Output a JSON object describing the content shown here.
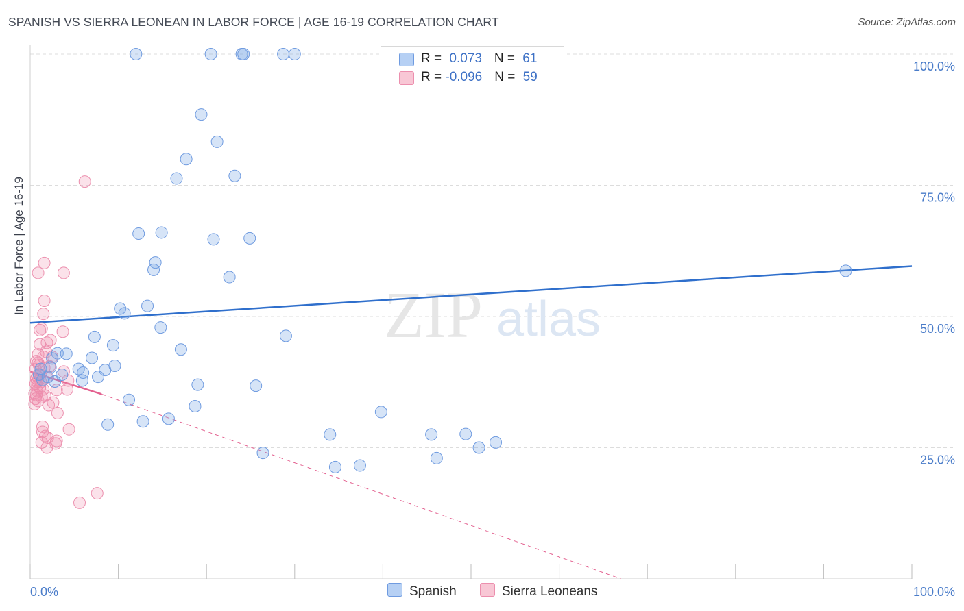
{
  "title": "SPANISH VS SIERRA LEONEAN IN LABOR FORCE | AGE 16-19 CORRELATION CHART",
  "source": "Source: ZipAtlas.com",
  "colors": {
    "spanish_fill": "rgba(120,165,230,0.30)",
    "spanish_stroke": "#6f9be0",
    "spanish_line": "#2f6fcc",
    "sierra_fill": "rgba(240,140,170,0.25)",
    "sierra_stroke": "#ec8fae",
    "sierra_line": "#e3608f",
    "tick": "#4a7cc9",
    "grid": "#dcdcdc"
  },
  "legend": {
    "rows": [
      {
        "r_label": "R = ",
        "r_value": "0.073",
        "n_label": "N = ",
        "n_value": "61"
      },
      {
        "r_label": "R = ",
        "r_value": "-0.096",
        "n_label": "N = ",
        "n_value": "59"
      }
    ]
  },
  "bottom_legend": {
    "spanish": "Spanish",
    "sierra": "Sierra Leoneans"
  },
  "watermark": {
    "zip": "ZIP",
    "atlas": "atlas"
  },
  "chart_data": {
    "type": "scatter",
    "title": "SPANISH VS SIERRA LEONEAN IN LABOR FORCE | AGE 16-19 CORRELATION CHART",
    "xlabel": "",
    "ylabel": "In Labor Force | Age 16-19",
    "xlim": [
      0,
      100
    ],
    "ylim": [
      0,
      100
    ],
    "x_tick_labels": [
      "0.0%",
      "100.0%"
    ],
    "y_tick_labels": [
      "100.0%",
      "75.0%",
      "50.0%",
      "25.0%"
    ],
    "y_tick_values": [
      100,
      75,
      50,
      25
    ],
    "series": [
      {
        "name": "Spanish",
        "R": 0.073,
        "N": 61,
        "trend": {
          "x": [
            0,
            100
          ],
          "y": [
            48.8,
            59.6
          ]
        },
        "points": [
          [
            12.0,
            100.0
          ],
          [
            20.5,
            100.0
          ],
          [
            24.0,
            100.0
          ],
          [
            24.2,
            100.0
          ],
          [
            28.7,
            100.0
          ],
          [
            30.0,
            100.0
          ],
          [
            19.4,
            88.5
          ],
          [
            21.2,
            83.3
          ],
          [
            17.7,
            80.0
          ],
          [
            16.6,
            76.3
          ],
          [
            23.2,
            76.8
          ],
          [
            12.3,
            65.8
          ],
          [
            14.9,
            66.0
          ],
          [
            20.8,
            64.7
          ],
          [
            24.9,
            64.9
          ],
          [
            14.2,
            60.3
          ],
          [
            14.0,
            58.9
          ],
          [
            22.6,
            57.5
          ],
          [
            92.5,
            58.7
          ],
          [
            10.2,
            51.5
          ],
          [
            10.7,
            50.6
          ],
          [
            13.3,
            52.0
          ],
          [
            14.8,
            47.9
          ],
          [
            29.0,
            46.3
          ],
          [
            7.3,
            46.1
          ],
          [
            9.4,
            44.5
          ],
          [
            17.1,
            43.7
          ],
          [
            1.0,
            38.9
          ],
          [
            1.4,
            37.9
          ],
          [
            2.3,
            40.3
          ],
          [
            2.5,
            42.0
          ],
          [
            3.1,
            43.0
          ],
          [
            4.1,
            42.9
          ],
          [
            2.8,
            37.6
          ],
          [
            3.6,
            38.9
          ],
          [
            5.5,
            40.0
          ],
          [
            6.0,
            39.3
          ],
          [
            7.0,
            42.1
          ],
          [
            7.7,
            38.5
          ],
          [
            8.5,
            39.8
          ],
          [
            9.6,
            40.6
          ],
          [
            5.9,
            37.8
          ],
          [
            19.0,
            37.0
          ],
          [
            25.6,
            36.8
          ],
          [
            11.2,
            34.1
          ],
          [
            18.7,
            32.9
          ],
          [
            39.8,
            31.8
          ],
          [
            8.8,
            29.4
          ],
          [
            12.8,
            30.0
          ],
          [
            15.7,
            30.5
          ],
          [
            34.0,
            27.5
          ],
          [
            45.5,
            27.5
          ],
          [
            49.4,
            27.6
          ],
          [
            50.9,
            25.0
          ],
          [
            52.8,
            26.0
          ],
          [
            26.4,
            24.0
          ],
          [
            34.6,
            21.3
          ],
          [
            37.4,
            21.6
          ],
          [
            46.1,
            23.0
          ],
          [
            1.2,
            40.0
          ],
          [
            2.0,
            38.5
          ]
        ]
      },
      {
        "name": "Sierra Leoneans",
        "R": -0.096,
        "N": 59,
        "trend": {
          "x": [
            0,
            8.1
          ],
          "y": [
            39.5,
            35.2
          ]
        },
        "trend_extended": {
          "x": [
            8.1,
            67.0
          ],
          "y": [
            35.2,
            0.0
          ]
        },
        "points": [
          [
            6.2,
            75.7
          ],
          [
            1.6,
            60.2
          ],
          [
            0.9,
            58.3
          ],
          [
            3.8,
            58.3
          ],
          [
            1.6,
            53.0
          ],
          [
            1.5,
            50.5
          ],
          [
            1.3,
            47.7
          ],
          [
            1.1,
            47.4
          ],
          [
            3.7,
            47.1
          ],
          [
            1.9,
            45.0
          ],
          [
            2.3,
            45.5
          ],
          [
            1.1,
            44.7
          ],
          [
            1.8,
            43.3
          ],
          [
            0.9,
            42.8
          ],
          [
            1.5,
            42.3
          ],
          [
            0.7,
            41.5
          ],
          [
            1.0,
            40.7
          ],
          [
            1.6,
            40.2
          ],
          [
            0.6,
            40.0
          ],
          [
            3.8,
            39.5
          ],
          [
            0.8,
            38.6
          ],
          [
            0.7,
            38.2
          ],
          [
            1.2,
            37.5
          ],
          [
            1.9,
            38.4
          ],
          [
            4.3,
            37.8
          ],
          [
            0.6,
            37.2
          ],
          [
            0.8,
            36.8
          ],
          [
            1.1,
            36.4
          ],
          [
            3.0,
            36.0
          ],
          [
            0.5,
            35.3
          ],
          [
            0.7,
            35.0
          ],
          [
            1.3,
            34.6
          ],
          [
            0.6,
            34.3
          ],
          [
            0.9,
            33.9
          ],
          [
            0.5,
            33.3
          ],
          [
            2.1,
            33.1
          ],
          [
            2.6,
            33.6
          ],
          [
            3.1,
            31.6
          ],
          [
            1.4,
            29.0
          ],
          [
            4.4,
            28.5
          ],
          [
            1.4,
            28.0
          ],
          [
            1.7,
            27.2
          ],
          [
            2.0,
            26.9
          ],
          [
            3.0,
            26.3
          ],
          [
            2.9,
            25.8
          ],
          [
            1.3,
            26.0
          ],
          [
            1.9,
            25.0
          ],
          [
            7.6,
            16.3
          ],
          [
            5.6,
            14.5
          ],
          [
            0.8,
            35.8
          ],
          [
            1.0,
            39.0
          ],
          [
            2.2,
            40.5
          ],
          [
            1.5,
            36.1
          ],
          [
            0.8,
            37.6
          ],
          [
            1.2,
            38.9
          ],
          [
            2.5,
            42.3
          ],
          [
            1.7,
            34.9
          ],
          [
            0.9,
            41.2
          ],
          [
            4.2,
            36.1
          ]
        ]
      }
    ]
  }
}
